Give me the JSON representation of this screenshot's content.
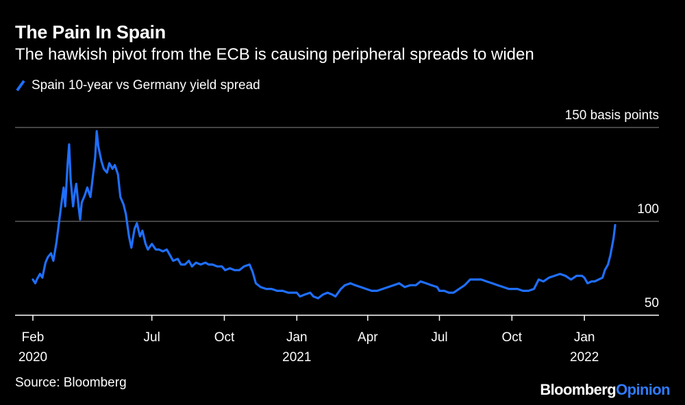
{
  "title": "The Pain In Spain",
  "subtitle": "The hawkish pivot from the ECB is causing peripheral spreads to widen",
  "source": "Source: Bloomberg",
  "logo": {
    "part1": "Bloomberg",
    "part2": "Opinion"
  },
  "colors": {
    "background": "#000000",
    "series": "#1f6fff",
    "grid": "#6e6e6e",
    "text": "#ffffff",
    "opinion": "#2f7bff"
  },
  "chart_data": {
    "type": "line",
    "title": "The Pain In Spain",
    "subtitle": "The hawkish pivot from the ECB is causing peripheral spreads to widen",
    "ylabel": "",
    "yunit_label": "150 basis points",
    "ylim": [
      50,
      150
    ],
    "yticks": [
      {
        "value": 150,
        "label": "150 basis points"
      },
      {
        "value": 100,
        "label": "100"
      },
      {
        "value": 50,
        "label": "50"
      }
    ],
    "xlim": [
      "2020-02-01",
      "2022-02-28"
    ],
    "xticks": [
      {
        "date": "2020-02-01",
        "label": "Feb",
        "sublabel": "2020"
      },
      {
        "date": "2020-07-01",
        "label": "Jul",
        "sublabel": ""
      },
      {
        "date": "2020-10-01",
        "label": "Oct",
        "sublabel": ""
      },
      {
        "date": "2021-01-01",
        "label": "Jan",
        "sublabel": "2021"
      },
      {
        "date": "2021-04-01",
        "label": "Apr",
        "sublabel": ""
      },
      {
        "date": "2021-07-01",
        "label": "Jul",
        "sublabel": ""
      },
      {
        "date": "2021-10-01",
        "label": "Oct",
        "sublabel": ""
      },
      {
        "date": "2022-01-01",
        "label": "Jan",
        "sublabel": "2022"
      }
    ],
    "grid": true,
    "legend": "top-left",
    "series": [
      {
        "name": "Spain 10-year vs Germany yield spread",
        "color": "#1f6fff",
        "points": [
          [
            "2020-02-01",
            69
          ],
          [
            "2020-02-04",
            67
          ],
          [
            "2020-02-06",
            69
          ],
          [
            "2020-02-10",
            72
          ],
          [
            "2020-02-13",
            70
          ],
          [
            "2020-02-17",
            78
          ],
          [
            "2020-02-20",
            81
          ],
          [
            "2020-02-24",
            83
          ],
          [
            "2020-02-27",
            79
          ],
          [
            "2020-03-02",
            89
          ],
          [
            "2020-03-05",
            99
          ],
          [
            "2020-03-09",
            112
          ],
          [
            "2020-03-11",
            118
          ],
          [
            "2020-03-13",
            108
          ],
          [
            "2020-03-16",
            130
          ],
          [
            "2020-03-18",
            141
          ],
          [
            "2020-03-20",
            122
          ],
          [
            "2020-03-23",
            108
          ],
          [
            "2020-03-25",
            115
          ],
          [
            "2020-03-27",
            120
          ],
          [
            "2020-03-30",
            108
          ],
          [
            "2020-04-01",
            101
          ],
          [
            "2020-04-03",
            110
          ],
          [
            "2020-04-07",
            114
          ],
          [
            "2020-04-10",
            118
          ],
          [
            "2020-04-14",
            113
          ],
          [
            "2020-04-16",
            120
          ],
          [
            "2020-04-20",
            134
          ],
          [
            "2020-04-22",
            148
          ],
          [
            "2020-04-24",
            140
          ],
          [
            "2020-04-28",
            132
          ],
          [
            "2020-05-01",
            128
          ],
          [
            "2020-05-05",
            126
          ],
          [
            "2020-05-08",
            131
          ],
          [
            "2020-05-12",
            128
          ],
          [
            "2020-05-15",
            130
          ],
          [
            "2020-05-19",
            125
          ],
          [
            "2020-05-22",
            113
          ],
          [
            "2020-05-26",
            109
          ],
          [
            "2020-05-29",
            104
          ],
          [
            "2020-06-02",
            92
          ],
          [
            "2020-06-05",
            86
          ],
          [
            "2020-06-09",
            96
          ],
          [
            "2020-06-12",
            99
          ],
          [
            "2020-06-16",
            92
          ],
          [
            "2020-06-19",
            95
          ],
          [
            "2020-06-23",
            88
          ],
          [
            "2020-06-26",
            85
          ],
          [
            "2020-07-01",
            88
          ],
          [
            "2020-07-06",
            85
          ],
          [
            "2020-07-10",
            85
          ],
          [
            "2020-07-15",
            84
          ],
          [
            "2020-07-20",
            85
          ],
          [
            "2020-07-24",
            82
          ],
          [
            "2020-07-28",
            79
          ],
          [
            "2020-08-03",
            80
          ],
          [
            "2020-08-07",
            77
          ],
          [
            "2020-08-12",
            77
          ],
          [
            "2020-08-17",
            79
          ],
          [
            "2020-08-21",
            76
          ],
          [
            "2020-08-26",
            78
          ],
          [
            "2020-09-01",
            77
          ],
          [
            "2020-09-07",
            78
          ],
          [
            "2020-09-11",
            77
          ],
          [
            "2020-09-16",
            77
          ],
          [
            "2020-09-22",
            76
          ],
          [
            "2020-09-28",
            76
          ],
          [
            "2020-10-02",
            74
          ],
          [
            "2020-10-08",
            75
          ],
          [
            "2020-10-14",
            74
          ],
          [
            "2020-10-20",
            74
          ],
          [
            "2020-10-26",
            76
          ],
          [
            "2020-11-02",
            77
          ],
          [
            "2020-11-06",
            73
          ],
          [
            "2020-11-10",
            67
          ],
          [
            "2020-11-16",
            65
          ],
          [
            "2020-11-23",
            64
          ],
          [
            "2020-11-30",
            64
          ],
          [
            "2020-12-07",
            63
          ],
          [
            "2020-12-14",
            63
          ],
          [
            "2020-12-21",
            62
          ],
          [
            "2020-12-28",
            62
          ],
          [
            "2021-01-01",
            62
          ],
          [
            "2021-01-05",
            60
          ],
          [
            "2021-01-11",
            61
          ],
          [
            "2021-01-18",
            62
          ],
          [
            "2021-01-22",
            60
          ],
          [
            "2021-01-28",
            59
          ],
          [
            "2021-02-03",
            61
          ],
          [
            "2021-02-09",
            62
          ],
          [
            "2021-02-15",
            61
          ],
          [
            "2021-02-19",
            60
          ],
          [
            "2021-02-26",
            64
          ],
          [
            "2021-03-03",
            66
          ],
          [
            "2021-03-10",
            67
          ],
          [
            "2021-03-16",
            66
          ],
          [
            "2021-03-23",
            65
          ],
          [
            "2021-03-30",
            64
          ],
          [
            "2021-04-06",
            63
          ],
          [
            "2021-04-13",
            63
          ],
          [
            "2021-04-20",
            64
          ],
          [
            "2021-04-27",
            65
          ],
          [
            "2021-05-04",
            66
          ],
          [
            "2021-05-11",
            67
          ],
          [
            "2021-05-18",
            65
          ],
          [
            "2021-05-25",
            66
          ],
          [
            "2021-06-01",
            66
          ],
          [
            "2021-06-07",
            68
          ],
          [
            "2021-06-14",
            67
          ],
          [
            "2021-06-21",
            66
          ],
          [
            "2021-06-28",
            65
          ],
          [
            "2021-07-01",
            63
          ],
          [
            "2021-07-07",
            63
          ],
          [
            "2021-07-13",
            62
          ],
          [
            "2021-07-19",
            62
          ],
          [
            "2021-07-26",
            64
          ],
          [
            "2021-08-02",
            66
          ],
          [
            "2021-08-09",
            69
          ],
          [
            "2021-08-16",
            69
          ],
          [
            "2021-08-23",
            69
          ],
          [
            "2021-08-30",
            68
          ],
          [
            "2021-09-06",
            67
          ],
          [
            "2021-09-13",
            66
          ],
          [
            "2021-09-20",
            65
          ],
          [
            "2021-09-27",
            64
          ],
          [
            "2021-10-01",
            64
          ],
          [
            "2021-10-08",
            64
          ],
          [
            "2021-10-15",
            63
          ],
          [
            "2021-10-22",
            63
          ],
          [
            "2021-10-29",
            64
          ],
          [
            "2021-11-04",
            69
          ],
          [
            "2021-11-10",
            68
          ],
          [
            "2021-11-17",
            70
          ],
          [
            "2021-11-24",
            71
          ],
          [
            "2021-12-01",
            72
          ],
          [
            "2021-12-08",
            71
          ],
          [
            "2021-12-15",
            69
          ],
          [
            "2021-12-22",
            71
          ],
          [
            "2021-12-29",
            71
          ],
          [
            "2022-01-01",
            70
          ],
          [
            "2022-01-05",
            67
          ],
          [
            "2022-01-10",
            68
          ],
          [
            "2022-01-14",
            68
          ],
          [
            "2022-01-19",
            69
          ],
          [
            "2022-01-24",
            70
          ],
          [
            "2022-01-27",
            74
          ],
          [
            "2022-01-31",
            77
          ],
          [
            "2022-02-03",
            82
          ],
          [
            "2022-02-07",
            91
          ],
          [
            "2022-02-09",
            98
          ]
        ]
      }
    ]
  }
}
